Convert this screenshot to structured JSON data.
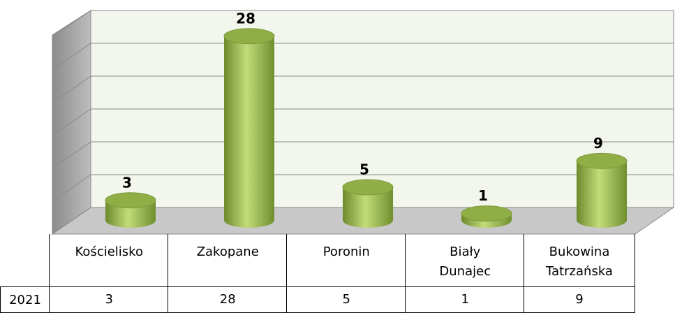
{
  "chart_data": {
    "type": "bar3d",
    "categories": [
      "Kościelisko",
      "Zakopane",
      "Poronin",
      "Biały Dunajec",
      "Bukowina Tatrzańska"
    ],
    "series": [
      {
        "name": "2021",
        "color": "#9bbb59",
        "values": [
          3,
          28,
          5,
          1,
          9
        ]
      }
    ],
    "ylim": [
      0,
      30
    ],
    "yticks": [
      0,
      5,
      10,
      15,
      20,
      25,
      30
    ],
    "grid": true
  }
}
